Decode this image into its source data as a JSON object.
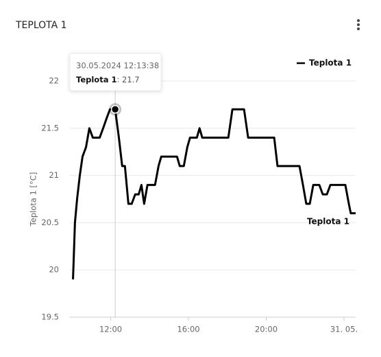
{
  "chart_data": {
    "type": "line",
    "title": "TEPLOTA 1",
    "y_label": "Teplota 1 [°C]",
    "x": [
      10.06,
      10.16,
      10.27,
      10.41,
      10.55,
      10.73,
      10.9,
      11.08,
      11.43,
      11.61,
      11.78,
      11.96,
      12.23,
      12.42,
      12.59,
      12.73,
      12.91,
      13.08,
      13.26,
      13.44,
      13.58,
      13.72,
      13.89,
      14.28,
      14.46,
      14.6,
      15.41,
      15.55,
      15.76,
      15.94,
      16.08,
      16.43,
      16.57,
      16.71,
      18.05,
      18.26,
      18.86,
      19.07,
      20.41,
      20.58,
      21.71,
      21.89,
      22.06,
      22.24,
      22.42,
      22.73,
      22.91,
      23.12,
      23.3,
      24.07,
      24.25,
      24.35,
      24.6
    ],
    "series": [
      {
        "name": "Teplota 1",
        "color": "#000000",
        "values": [
          19.9,
          20.5,
          20.75,
          21.0,
          21.2,
          21.3,
          21.5,
          21.4,
          21.4,
          21.5,
          21.6,
          21.7,
          21.7,
          21.4,
          21.1,
          21.1,
          20.7,
          20.7,
          20.8,
          20.8,
          20.9,
          20.7,
          20.9,
          20.9,
          21.1,
          21.2,
          21.2,
          21.1,
          21.1,
          21.3,
          21.4,
          21.4,
          21.5,
          21.4,
          21.4,
          21.7,
          21.7,
          21.4,
          21.4,
          21.1,
          21.1,
          20.9,
          20.7,
          20.7,
          20.9,
          20.9,
          20.8,
          20.8,
          20.9,
          20.9,
          20.7,
          20.6,
          20.6
        ]
      }
    ],
    "xlim": [
      9.9,
      24.6
    ],
    "xticks": [
      {
        "value": 12,
        "label": "12:00"
      },
      {
        "value": 16,
        "label": "16:00"
      },
      {
        "value": 20,
        "label": "20:00"
      },
      {
        "value": 24,
        "label": "31. 05."
      }
    ],
    "ylim": [
      19.5,
      22
    ],
    "yticks": [
      19.5,
      20,
      20.5,
      21,
      21.5,
      22
    ],
    "grid": true,
    "legend": "top-right",
    "tooltip": {
      "date": "30.05.2024 12:13:38",
      "series": "Teplota 1",
      "value": 21.7,
      "index": 12
    }
  }
}
